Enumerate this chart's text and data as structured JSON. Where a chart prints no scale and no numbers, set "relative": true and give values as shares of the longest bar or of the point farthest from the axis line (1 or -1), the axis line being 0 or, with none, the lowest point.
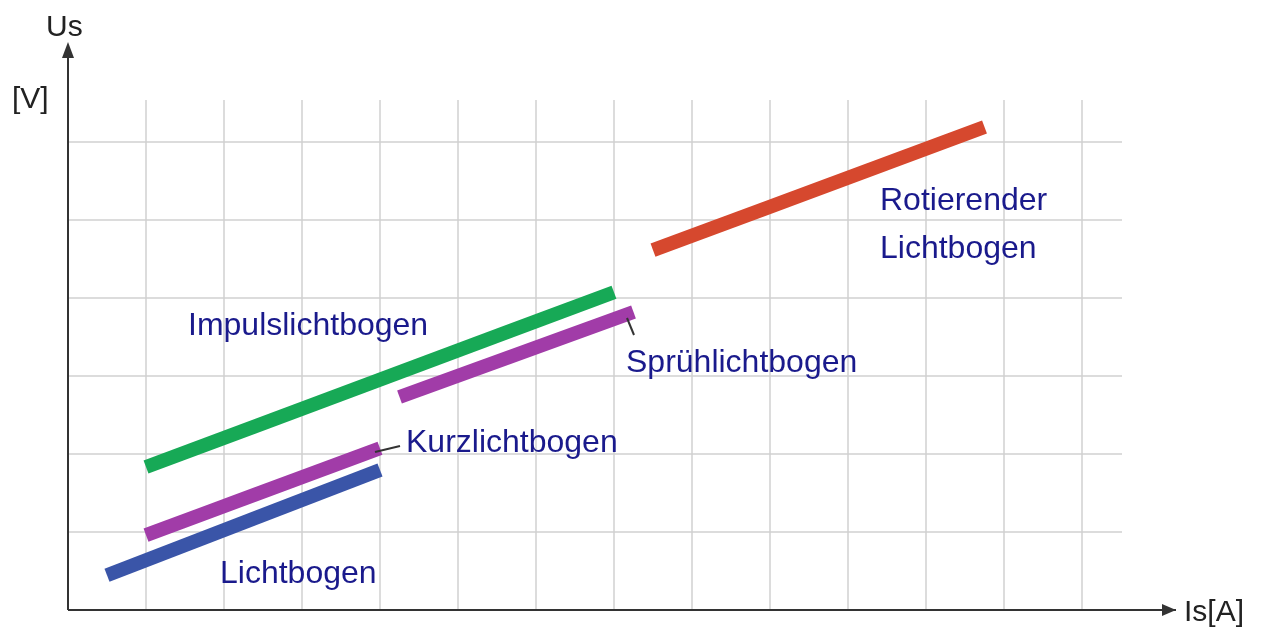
{
  "chart_data": {
    "type": "line",
    "relative": true,
    "xlabel": "Is[A]",
    "ylabel": "Us [V]",
    "grid": true,
    "marker": "none",
    "line_style": "solid",
    "categories": [
      null,
      null,
      null,
      null,
      null,
      null,
      null,
      null,
      null,
      null,
      null,
      null,
      null,
      null,
      null,
      null,
      null,
      null,
      null,
      null,
      null,
      null,
      null,
      null,
      null,
      null,
      null,
      null,
      null,
      null,
      null,
      null,
      null,
      null,
      null,
      null,
      null,
      null,
      null,
      null,
      null,
      null,
      null,
      null,
      null,
      null,
      null,
      null,
      null,
      null,
      null,
      null,
      null
    ],
    "annotations": [
      "Lichtbogen",
      "Kurzlichtbogen",
      "Impulslichtbogen",
      "Sprühlichtbogen",
      "Rotierender Lichtbogen"
    ],
    "series": [
      {
        "color": "#3a55a8",
        "values": [
          null,
          null,
          0.072,
          null,
          null,
          null,
          null,
          null,
          null,
          null,
          null,
          null,
          null,
          null,
          null,
          null,
          0.29,
          null,
          null,
          null,
          null,
          null,
          null,
          null,
          null,
          null,
          null,
          null,
          null,
          null,
          null,
          null,
          null,
          null,
          null,
          null,
          null,
          null,
          null,
          null,
          null,
          null,
          null,
          null,
          null,
          null,
          null,
          null,
          null,
          null,
          null,
          null,
          null
        ]
      },
      {
        "color": "#a13ca8",
        "values": [
          null,
          null,
          null,
          null,
          0.155,
          null,
          null,
          null,
          null,
          null,
          null,
          null,
          null,
          null,
          null,
          null,
          0.335,
          null,
          null,
          null,
          null,
          null,
          null,
          null,
          null,
          null,
          null,
          null,
          null,
          null,
          null,
          null,
          null,
          null,
          null,
          null,
          null,
          null,
          null,
          null,
          null,
          null,
          null,
          null,
          null,
          null,
          null,
          null,
          null,
          null,
          null,
          null,
          null
        ]
      },
      {
        "color": "#17a956",
        "values": [
          null,
          null,
          null,
          null,
          0.296,
          null,
          null,
          null,
          null,
          null,
          null,
          null,
          null,
          null,
          null,
          null,
          null,
          null,
          null,
          null,
          null,
          null,
          null,
          null,
          null,
          null,
          null,
          null,
          0.658,
          null,
          null,
          null,
          null,
          null,
          null,
          null,
          null,
          null,
          null,
          null,
          null,
          null,
          null,
          null,
          null,
          null,
          null,
          null,
          null,
          null,
          null,
          null,
          null
        ]
      },
      {
        "color": "#a13ca8",
        "values": [
          null,
          null,
          null,
          null,
          null,
          null,
          null,
          null,
          null,
          null,
          null,
          null,
          null,
          null,
          null,
          null,
          null,
          0.441,
          null,
          null,
          null,
          null,
          null,
          null,
          null,
          null,
          null,
          null,
          null,
          0.617,
          null,
          null,
          null,
          null,
          null,
          null,
          null,
          null,
          null,
          null,
          null,
          null,
          null,
          null,
          null,
          null,
          null,
          null,
          null,
          null,
          null,
          null,
          null
        ]
      },
      {
        "color": "#d6482e",
        "values": [
          null,
          null,
          null,
          null,
          null,
          null,
          null,
          null,
          null,
          null,
          null,
          null,
          null,
          null,
          null,
          null,
          null,
          null,
          null,
          null,
          null,
          null,
          null,
          null,
          null,
          null,
          null,
          null,
          null,
          null,
          0.745,
          null,
          null,
          null,
          null,
          null,
          null,
          null,
          null,
          null,
          null,
          null,
          null,
          null,
          null,
          null,
          null,
          1.0,
          null,
          null,
          null,
          null,
          null
        ]
      }
    ]
  }
}
